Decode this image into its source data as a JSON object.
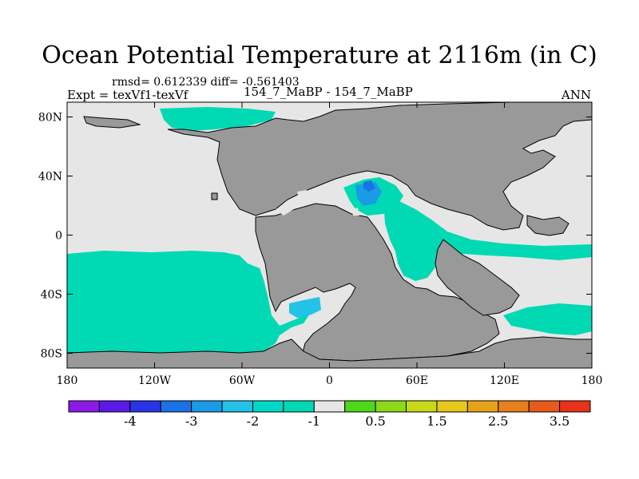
{
  "title": "Ocean Potential Temperature at 2116m (in C)",
  "stats": "rmsd= 0.612339 diff= -0.561403",
  "expt_label": "Expt = texVf1-texVf",
  "subtitle": "154_7_MaBP - 154_7_MaBP",
  "season": "ANN",
  "colors": {
    "land": "#999999",
    "near_zero": "#e6e6e6",
    "ocean_cool": "#00d9b3",
    "ocean_mid": "#22c3e6",
    "ocean_cold": "#1a8fe6",
    "coast": "#000000"
  },
  "chart_data": {
    "type": "heatmap",
    "title": "Ocean Potential Temperature at 2116m (in C)",
    "x_range": [
      -180,
      180
    ],
    "y_range": [
      -90,
      90
    ],
    "x_ticks": [
      {
        "value": -180,
        "label": "180"
      },
      {
        "value": -120,
        "label": "120W"
      },
      {
        "value": -60,
        "label": "60W"
      },
      {
        "value": 0,
        "label": "0"
      },
      {
        "value": 60,
        "label": "60E"
      },
      {
        "value": 120,
        "label": "120E"
      },
      {
        "value": 180,
        "label": "180"
      }
    ],
    "y_ticks": [
      {
        "value": 80,
        "label": "80N"
      },
      {
        "value": 40,
        "label": "40N"
      },
      {
        "value": 0,
        "label": "0"
      },
      {
        "value": -40,
        "label": "40S"
      },
      {
        "value": -80,
        "label": "80S"
      }
    ],
    "colorbar": {
      "colors": [
        "#8c1ae6",
        "#5a1ae6",
        "#2b33e6",
        "#1a73e6",
        "#1a9be6",
        "#22c3e6",
        "#00d9c8",
        "#00d9b3",
        "#e6e6e6",
        "#4dd91a",
        "#8cd91a",
        "#c8d91a",
        "#e6c81a",
        "#e6a31a",
        "#e6801a",
        "#e65a1a",
        "#e6331a"
      ],
      "labels": [
        {
          "value": -4,
          "label": "-4"
        },
        {
          "value": -3,
          "label": "-3"
        },
        {
          "value": -2,
          "label": "-2"
        },
        {
          "value": -1,
          "label": "-1"
        },
        {
          "value": 0.5,
          "label": "0.5"
        },
        {
          "value": 1.5,
          "label": "1.5"
        },
        {
          "value": 2.5,
          "label": "2.5"
        },
        {
          "value": 3.5,
          "label": "3.5"
        }
      ],
      "range": [
        -4.5,
        4
      ]
    }
  }
}
